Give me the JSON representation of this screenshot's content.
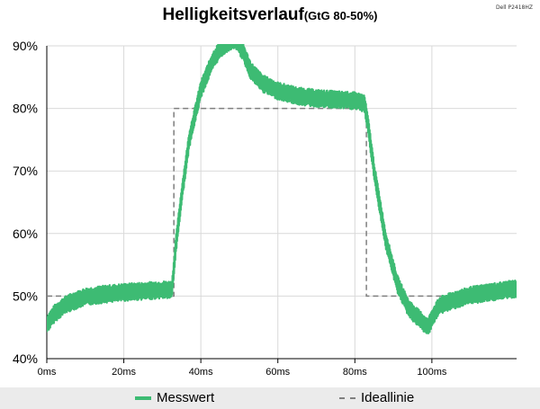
{
  "corner_label": "Dell P2418HZ",
  "colors": {
    "measured": "#3dbb73",
    "ideal": "#7f7f7f",
    "grid": "#d9d9d9",
    "legend_bg": "#ebebeb"
  },
  "chart_data": {
    "type": "line",
    "title": "Helligkeitsverlauf",
    "subtitle": "(GtG 80-50%)",
    "xlabel": "",
    "ylabel": "",
    "xlim": [
      0,
      122
    ],
    "ylim": [
      40,
      90
    ],
    "x_ticks": [
      0,
      20,
      40,
      60,
      80,
      100
    ],
    "x_tick_labels": [
      "0ms",
      "20ms",
      "40ms",
      "60ms",
      "80ms",
      "100ms"
    ],
    "y_ticks": [
      40,
      50,
      60,
      70,
      80,
      90
    ],
    "y_tick_labels": [
      "40%",
      "50%",
      "60%",
      "70%",
      "80%",
      "90%"
    ],
    "grid": true,
    "legend_position": "bottom",
    "series": [
      {
        "name": "Messwert",
        "style": "solid-noisy",
        "x": [
          0,
          2,
          5,
          10,
          15,
          20,
          25,
          30,
          32.5,
          33.5,
          35,
          37,
          40,
          43,
          45,
          47,
          48,
          49,
          51,
          53,
          56,
          60,
          65,
          70,
          75,
          80,
          82.5,
          83.5,
          85,
          88,
          91,
          94,
          97,
          99,
          100,
          102,
          106,
          110,
          115,
          122
        ],
        "y": [
          45.5,
          47.2,
          48.7,
          49.9,
          50.3,
          50.6,
          50.8,
          51,
          51,
          58,
          66,
          75,
          83,
          87.5,
          89.5,
          90.5,
          90.8,
          91,
          89,
          86,
          84,
          82.8,
          82,
          81.6,
          81.4,
          81.2,
          80.8,
          77,
          70,
          59,
          52,
          48,
          46.2,
          45,
          46.5,
          48.5,
          49.4,
          50.1,
          50.6,
          51.2
        ]
      },
      {
        "name": "Ideallinie",
        "style": "dashed",
        "x": [
          0,
          33,
          33,
          83,
          83,
          122
        ],
        "y": [
          50,
          50,
          80,
          80,
          50,
          50
        ]
      }
    ]
  }
}
